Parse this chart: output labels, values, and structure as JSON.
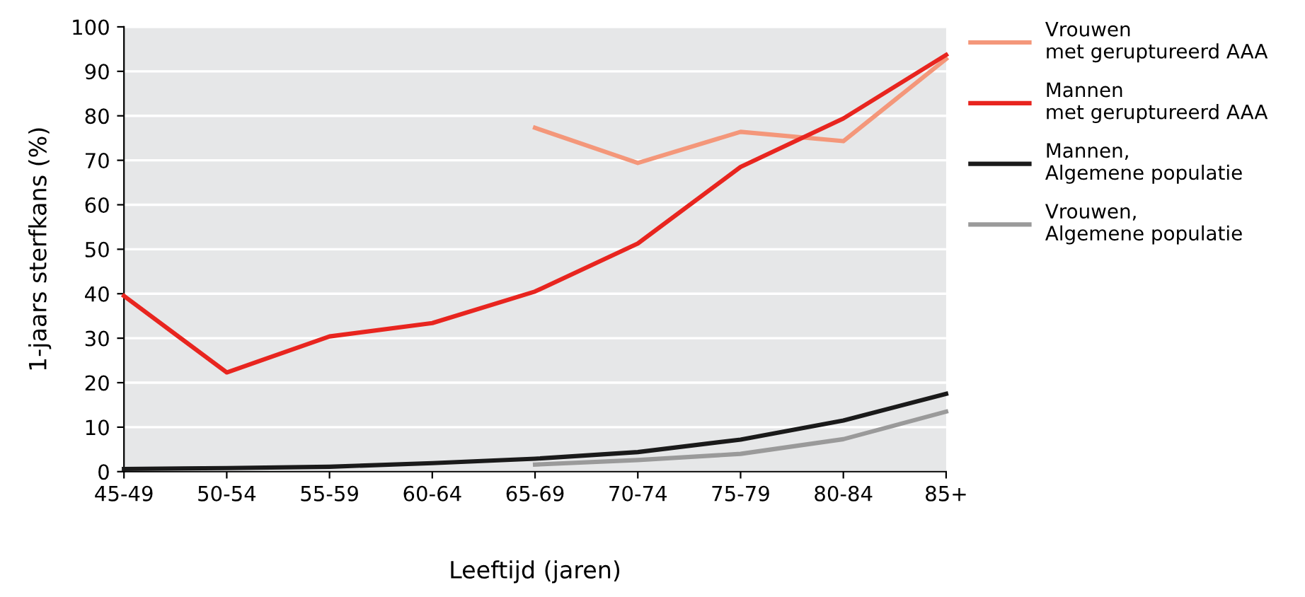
{
  "chart_data": {
    "type": "line",
    "xlabel": "Leeftijd (jaren)",
    "ylabel": "1-jaars sterfkans (%)",
    "categories": [
      "45-49",
      "50-54",
      "55-59",
      "60-64",
      "65-69",
      "70-74",
      "75-79",
      "80-84",
      "85+"
    ],
    "series": [
      {
        "name": "Vrouwen\nmet geruptureerd AAA",
        "color": "#f4977a",
        "values": [
          null,
          null,
          null,
          null,
          77.3,
          69.4,
          76.4,
          74.3,
          92.8
        ]
      },
      {
        "name": "Mannen\nmet geruptureerd AAA",
        "color": "#e8251f",
        "values": [
          39.5,
          22.3,
          30.4,
          33.4,
          40.5,
          51.3,
          68.5,
          79.4,
          93.7
        ]
      },
      {
        "name": "Mannen,\nAlgemene populatie",
        "color": "#1a1a1a",
        "values": [
          0.6,
          0.8,
          1.1,
          1.9,
          2.9,
          4.4,
          7.2,
          11.5,
          17.5
        ]
      },
      {
        "name": "Vrouwen,\nAlgemene populatie",
        "color": "#9a9a9a",
        "values": [
          null,
          null,
          null,
          null,
          1.6,
          2.6,
          4.0,
          7.3,
          13.5
        ]
      }
    ],
    "ylim": [
      0,
      100
    ],
    "yticks": [
      0,
      10,
      20,
      30,
      40,
      50,
      60,
      70,
      80,
      90,
      100
    ],
    "grid": "y",
    "legend": "top right",
    "marker": "none",
    "line_style": "solid"
  }
}
